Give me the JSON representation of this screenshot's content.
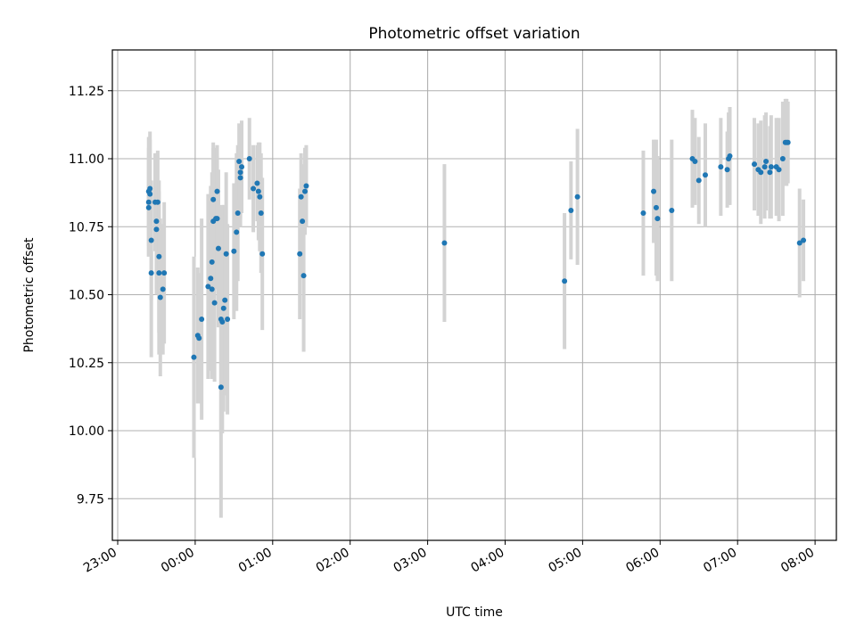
{
  "chart_data": {
    "type": "scatter",
    "title": "Photometric offset variation",
    "xlabel": "UTC time",
    "ylabel": "Photometric offset",
    "x_ticks": [
      "23:00",
      "00:00",
      "01:00",
      "02:00",
      "03:00",
      "04:00",
      "05:00",
      "06:00",
      "07:00",
      "08:00"
    ],
    "y_ticks": [
      "9.75",
      "10.00",
      "10.25",
      "10.50",
      "10.75",
      "11.00",
      "11.25"
    ],
    "xlim": [
      "22:57",
      "08:09"
    ],
    "ylim": [
      9.59,
      11.4
    ],
    "grid": true,
    "colors": {
      "points": "#1f77b4",
      "errorbars": "#d3d3d3",
      "grid": "#b0b0b0"
    },
    "points": [
      {
        "t": "23:24",
        "y": 10.88,
        "err": 0.2
      },
      {
        "t": "23:24",
        "y": 10.84,
        "err": 0.2
      },
      {
        "t": "23:24",
        "y": 10.82,
        "err": 0.18
      },
      {
        "t": "23:25",
        "y": 10.89,
        "err": 0.21
      },
      {
        "t": "23:25",
        "y": 10.87,
        "err": 0.2
      },
      {
        "t": "23:26",
        "y": 10.7,
        "err": 0.22
      },
      {
        "t": "23:26",
        "y": 10.58,
        "err": 0.31
      },
      {
        "t": "23:29",
        "y": 10.84,
        "err": 0.18
      },
      {
        "t": "23:30",
        "y": 10.77,
        "err": 0.25
      },
      {
        "t": "23:30",
        "y": 10.74,
        "err": 0.24
      },
      {
        "t": "23:31",
        "y": 10.84,
        "err": 0.19
      },
      {
        "t": "23:32",
        "y": 10.64,
        "err": 0.28
      },
      {
        "t": "23:32",
        "y": 10.58,
        "err": 0.3
      },
      {
        "t": "23:33",
        "y": 10.49,
        "err": 0.29
      },
      {
        "t": "23:35",
        "y": 10.52,
        "err": 0.24
      },
      {
        "t": "23:36",
        "y": 10.58,
        "err": 0.26
      },
      {
        "t": "23:59",
        "y": 10.27,
        "err": 0.37
      },
      {
        "t": "00:02",
        "y": 10.35,
        "err": 0.25
      },
      {
        "t": "00:03",
        "y": 10.34,
        "err": 0.24
      },
      {
        "t": "00:05",
        "y": 10.41,
        "err": 0.37
      },
      {
        "t": "00:10",
        "y": 10.53,
        "err": 0.34
      },
      {
        "t": "00:12",
        "y": 10.56,
        "err": 0.34
      },
      {
        "t": "00:13",
        "y": 10.62,
        "err": 0.33
      },
      {
        "t": "00:13",
        "y": 10.52,
        "err": 0.33
      },
      {
        "t": "00:14",
        "y": 10.85,
        "err": 0.21
      },
      {
        "t": "00:14",
        "y": 10.77,
        "err": 0.27
      },
      {
        "t": "00:15",
        "y": 10.47,
        "err": 0.29
      },
      {
        "t": "00:16",
        "y": 10.78,
        "err": 0.26
      },
      {
        "t": "00:17",
        "y": 10.88,
        "err": 0.17
      },
      {
        "t": "00:17",
        "y": 10.78,
        "err": 0.23
      },
      {
        "t": "00:18",
        "y": 10.67,
        "err": 0.29
      },
      {
        "t": "00:20",
        "y": 10.16,
        "err": 0.48
      },
      {
        "t": "00:20",
        "y": 10.41,
        "err": 0.42
      },
      {
        "t": "00:21",
        "y": 10.4,
        "err": 0.41
      },
      {
        "t": "00:22",
        "y": 10.45,
        "err": 0.38
      },
      {
        "t": "00:23",
        "y": 10.48,
        "err": 0.35
      },
      {
        "t": "00:24",
        "y": 10.65,
        "err": 0.3
      },
      {
        "t": "00:25",
        "y": 10.41,
        "err": 0.35
      },
      {
        "t": "00:30",
        "y": 10.66,
        "err": 0.25
      },
      {
        "t": "00:32",
        "y": 10.73,
        "err": 0.29
      },
      {
        "t": "00:33",
        "y": 10.8,
        "err": 0.25
      },
      {
        "t": "00:34",
        "y": 10.99,
        "err": 0.14
      },
      {
        "t": "00:35",
        "y": 10.95,
        "err": 0.17
      },
      {
        "t": "00:35",
        "y": 10.93,
        "err": 0.18
      },
      {
        "t": "00:36",
        "y": 10.97,
        "err": 0.17
      },
      {
        "t": "00:42",
        "y": 11.0,
        "err": 0.15
      },
      {
        "t": "00:45",
        "y": 10.89,
        "err": 0.16
      },
      {
        "t": "00:48",
        "y": 10.91,
        "err": 0.14
      },
      {
        "t": "00:49",
        "y": 10.88,
        "err": 0.18
      },
      {
        "t": "00:50",
        "y": 10.86,
        "err": 0.2
      },
      {
        "t": "00:51",
        "y": 10.8,
        "err": 0.22
      },
      {
        "t": "00:52",
        "y": 10.65,
        "err": 0.28
      },
      {
        "t": "01:21",
        "y": 10.65,
        "err": 0.24
      },
      {
        "t": "01:22",
        "y": 10.86,
        "err": 0.16
      },
      {
        "t": "01:23",
        "y": 10.77,
        "err": 0.21
      },
      {
        "t": "01:24",
        "y": 10.57,
        "err": 0.28
      },
      {
        "t": "01:25",
        "y": 10.88,
        "err": 0.16
      },
      {
        "t": "01:26",
        "y": 10.9,
        "err": 0.15
      },
      {
        "t": "03:13",
        "y": 10.69,
        "err": 0.29
      },
      {
        "t": "04:46",
        "y": 10.55,
        "err": 0.25
      },
      {
        "t": "04:51",
        "y": 10.81,
        "err": 0.18
      },
      {
        "t": "04:56",
        "y": 10.86,
        "err": 0.25
      },
      {
        "t": "05:47",
        "y": 10.8,
        "err": 0.23
      },
      {
        "t": "05:55",
        "y": 10.88,
        "err": 0.19
      },
      {
        "t": "05:57",
        "y": 10.82,
        "err": 0.25
      },
      {
        "t": "05:58",
        "y": 10.78,
        "err": 0.23
      },
      {
        "t": "06:09",
        "y": 10.81,
        "err": 0.26
      },
      {
        "t": "06:25",
        "y": 11.0,
        "err": 0.18
      },
      {
        "t": "06:27",
        "y": 10.99,
        "err": 0.16
      },
      {
        "t": "06:30",
        "y": 10.92,
        "err": 0.16
      },
      {
        "t": "06:35",
        "y": 10.94,
        "err": 0.19
      },
      {
        "t": "06:47",
        "y": 10.97,
        "err": 0.18
      },
      {
        "t": "06:52",
        "y": 10.96,
        "err": 0.14
      },
      {
        "t": "06:53",
        "y": 11.0,
        "err": 0.17
      },
      {
        "t": "06:54",
        "y": 11.01,
        "err": 0.18
      },
      {
        "t": "07:13",
        "y": 10.98,
        "err": 0.17
      },
      {
        "t": "07:16",
        "y": 10.96,
        "err": 0.17
      },
      {
        "t": "07:18",
        "y": 10.95,
        "err": 0.19
      },
      {
        "t": "07:21",
        "y": 10.97,
        "err": 0.19
      },
      {
        "t": "07:22",
        "y": 10.99,
        "err": 0.18
      },
      {
        "t": "07:25",
        "y": 10.95,
        "err": 0.17
      },
      {
        "t": "07:26",
        "y": 10.97,
        "err": 0.19
      },
      {
        "t": "07:30",
        "y": 10.97,
        "err": 0.18
      },
      {
        "t": "07:32",
        "y": 10.96,
        "err": 0.19
      },
      {
        "t": "07:35",
        "y": 11.0,
        "err": 0.21
      },
      {
        "t": "07:37",
        "y": 11.06,
        "err": 0.16
      },
      {
        "t": "07:38",
        "y": 11.06,
        "err": 0.16
      },
      {
        "t": "07:39",
        "y": 11.06,
        "err": 0.15
      },
      {
        "t": "07:48",
        "y": 10.69,
        "err": 0.2
      },
      {
        "t": "07:51",
        "y": 10.7,
        "err": 0.15
      }
    ]
  }
}
